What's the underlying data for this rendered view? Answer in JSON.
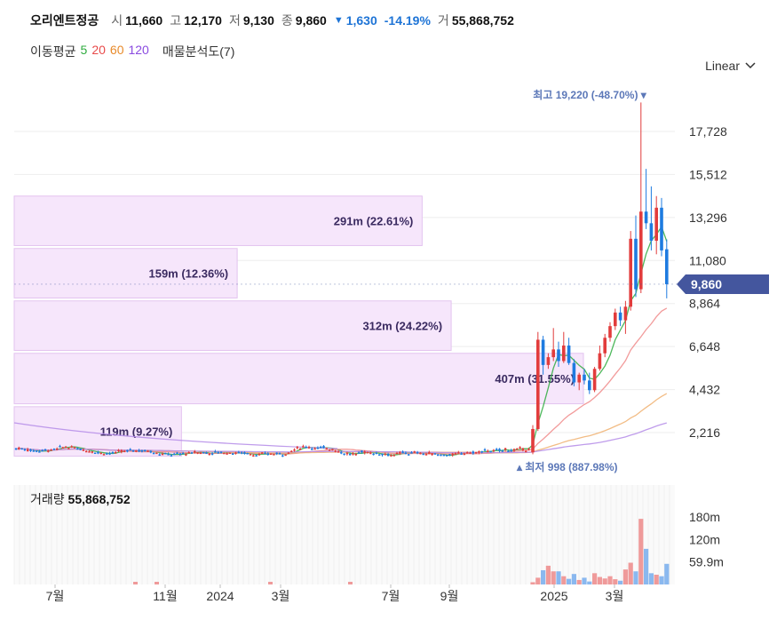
{
  "header": {
    "name": "오리엔트정공",
    "open_label": "시",
    "open": "11,660",
    "high_label": "고",
    "high": "12,170",
    "low_label": "저",
    "low": "9,130",
    "close_label": "종",
    "close": "9,860",
    "change": "1,630",
    "change_pct": "-14.19%",
    "volume_label": "거",
    "volume": "55,868,752",
    "down_color": "#1e74d6"
  },
  "ma_legend": {
    "label": "이동평균",
    "items": [
      {
        "period": "5",
        "color": "#2eab3e"
      },
      {
        "period": "20",
        "color": "#e84a4a"
      },
      {
        "period": "60",
        "color": "#e88a2a"
      },
      {
        "period": "120",
        "color": "#8a4be0"
      }
    ],
    "profile_label": "매물분석도(7)"
  },
  "scale": {
    "label": "Linear",
    "icon": "chevron-down-icon"
  },
  "chart_data": {
    "type": "candlestick",
    "y_ticks": [
      "17,728",
      "15,512",
      "13,296",
      "11,080",
      "8,864",
      "6,648",
      "4,432",
      "2,216"
    ],
    "y_tick_values": [
      17728,
      15512,
      13296,
      11080,
      8864,
      6648,
      4432,
      2216
    ],
    "current_price": {
      "label": "9,860",
      "value": 9860,
      "color": "#44569e"
    },
    "high_annotation": {
      "text": "최고 19,220 (-48.70%)",
      "value": 19220
    },
    "low_annotation": {
      "text": "최저 998 (887.98%)",
      "value": 998
    },
    "volume_profile": [
      {
        "label": "291m (22.61%)",
        "fraction": 0.2261,
        "price_low": 11850,
        "price_high": 14400
      },
      {
        "label": "159m (12.36%)",
        "fraction": 0.1236,
        "price_low": 9150,
        "price_high": 11700
      },
      {
        "label": "312m (24.22%)",
        "fraction": 0.2422,
        "price_low": 6450,
        "price_high": 9000
      },
      {
        "label": "407m (31.55%)",
        "fraction": 0.3155,
        "price_low": 3700,
        "price_high": 6300
      },
      {
        "label": "119m (9.27%)",
        "fraction": 0.0927,
        "price_low": 1000,
        "price_high": 3550
      }
    ],
    "x_labels": [
      "7월",
      "11월",
      "2024",
      "3월",
      "7월",
      "9월",
      "2025",
      "3월"
    ],
    "volume_ticks": [
      "180m",
      "120m",
      "59.9m"
    ],
    "volume_tick_values": [
      180,
      120,
      59.9
    ],
    "up_color": "#e23c3c",
    "down_color": "#1e7be0",
    "late_candles": [
      {
        "o": 1200,
        "h": 2600,
        "l": 1100,
        "c": 2400
      },
      {
        "o": 2400,
        "h": 7400,
        "l": 2300,
        "c": 7000
      },
      {
        "o": 7000,
        "h": 7200,
        "l": 5200,
        "c": 5700
      },
      {
        "o": 5700,
        "h": 6300,
        "l": 5500,
        "c": 6100
      },
      {
        "o": 6100,
        "h": 7600,
        "l": 5900,
        "c": 6500
      },
      {
        "o": 6500,
        "h": 6900,
        "l": 5600,
        "c": 5900
      },
      {
        "o": 5900,
        "h": 7400,
        "l": 5800,
        "c": 6700
      },
      {
        "o": 6700,
        "h": 7100,
        "l": 5700,
        "c": 5800
      },
      {
        "o": 5800,
        "h": 6000,
        "l": 4600,
        "c": 4800
      },
      {
        "o": 4800,
        "h": 5300,
        "l": 4400,
        "c": 5200
      },
      {
        "o": 5200,
        "h": 5500,
        "l": 4700,
        "c": 4900
      },
      {
        "o": 4900,
        "h": 5300,
        "l": 4200,
        "c": 4400
      },
      {
        "o": 4400,
        "h": 5600,
        "l": 4300,
        "c": 5500
      },
      {
        "o": 5500,
        "h": 6700,
        "l": 5400,
        "c": 6300
      },
      {
        "o": 6300,
        "h": 7300,
        "l": 6100,
        "c": 7100
      },
      {
        "o": 7100,
        "h": 7900,
        "l": 6900,
        "c": 7700
      },
      {
        "o": 7700,
        "h": 8600,
        "l": 7500,
        "c": 8400
      },
      {
        "o": 8400,
        "h": 8700,
        "l": 7700,
        "c": 8000
      },
      {
        "o": 8000,
        "h": 9000,
        "l": 7300,
        "c": 8700
      },
      {
        "o": 8700,
        "h": 12600,
        "l": 8500,
        "c": 12200
      },
      {
        "o": 12200,
        "h": 13400,
        "l": 9200,
        "c": 9600
      },
      {
        "o": 9600,
        "h": 19220,
        "l": 9400,
        "c": 13600
      },
      {
        "o": 13600,
        "h": 15800,
        "l": 12700,
        "c": 13000
      },
      {
        "o": 13000,
        "h": 14900,
        "l": 11600,
        "c": 12100
      },
      {
        "o": 12100,
        "h": 14400,
        "l": 11400,
        "c": 13800
      },
      {
        "o": 13800,
        "h": 14300,
        "l": 11300,
        "c": 11600
      },
      {
        "o": 11660,
        "h": 12170,
        "l": 9130,
        "c": 9860
      }
    ]
  },
  "volume_panel": {
    "label": "거래량",
    "value": "55,868,752"
  }
}
